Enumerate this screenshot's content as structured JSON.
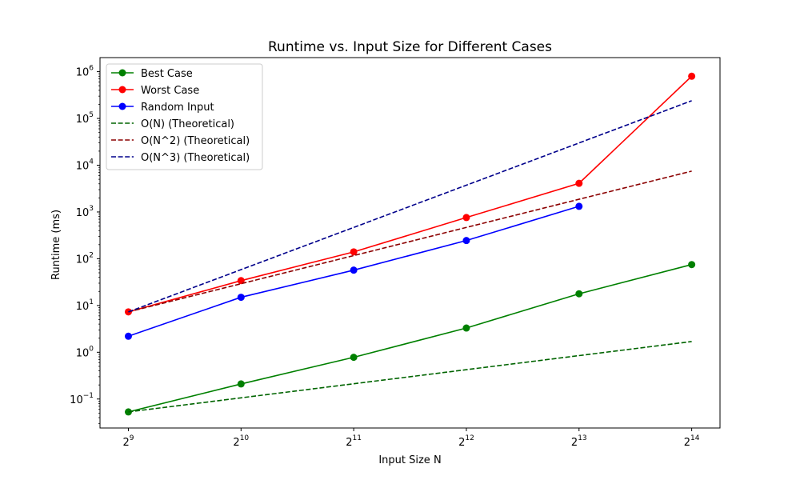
{
  "chart_data": {
    "type": "line",
    "title": "Runtime vs. Input Size for Different Cases",
    "xlabel": "Input Size N",
    "ylabel": "Runtime (ms)",
    "x_scale": "log2",
    "y_scale": "log10",
    "x": [
      512,
      1024,
      2048,
      4096,
      8192,
      16384
    ],
    "x_tick_labels": [
      {
        "base": "2",
        "exp": "9"
      },
      {
        "base": "2",
        "exp": "10"
      },
      {
        "base": "2",
        "exp": "11"
      },
      {
        "base": "2",
        "exp": "12"
      },
      {
        "base": "2",
        "exp": "13"
      },
      {
        "base": "2",
        "exp": "14"
      }
    ],
    "y_ticks": [
      0.1,
      1,
      10,
      100,
      1000,
      10000,
      100000,
      1000000
    ],
    "y_tick_labels": [
      {
        "base": "10",
        "exp": "−1"
      },
      {
        "base": "10",
        "exp": "0"
      },
      {
        "base": "10",
        "exp": "1"
      },
      {
        "base": "10",
        "exp": "2"
      },
      {
        "base": "10",
        "exp": "3"
      },
      {
        "base": "10",
        "exp": "4"
      },
      {
        "base": "10",
        "exp": "5"
      },
      {
        "base": "10",
        "exp": "6"
      }
    ],
    "xlim": [
      430,
      19500
    ],
    "ylim": [
      0.024,
      2000000
    ],
    "grid": false,
    "legend_position": "top-left",
    "series": [
      {
        "name": "Best Case",
        "color": "#008000",
        "style": "solid",
        "marker": "circle",
        "x": [
          512,
          1024,
          2048,
          4096,
          8192,
          16384
        ],
        "values": [
          0.053,
          0.21,
          0.78,
          3.3,
          17.8,
          75
        ]
      },
      {
        "name": "Worst Case",
        "color": "#ff0000",
        "style": "solid",
        "marker": "circle",
        "x": [
          512,
          1024,
          2048,
          4096,
          8192,
          16384
        ],
        "values": [
          7.3,
          34,
          140,
          760,
          4100,
          800000
        ]
      },
      {
        "name": "Random Input",
        "color": "#0000ff",
        "style": "solid",
        "marker": "circle",
        "x": [
          512,
          1024,
          2048,
          4096,
          8192
        ],
        "values": [
          2.2,
          15,
          57,
          245,
          1320
        ]
      },
      {
        "name": "O(N) (Theoretical)",
        "color": "#006400",
        "style": "dashed",
        "marker": "none",
        "x": [
          512,
          1024,
          2048,
          4096,
          8192,
          16384
        ],
        "values": [
          0.053,
          0.106,
          0.212,
          0.424,
          0.848,
          1.696
        ]
      },
      {
        "name": "O(N^2) (Theoretical)",
        "color": "#8b0000",
        "style": "dashed",
        "marker": "none",
        "x": [
          512,
          1024,
          2048,
          4096,
          8192,
          16384
        ],
        "values": [
          7.3,
          29.2,
          116.8,
          467.2,
          1868.8,
          7475.2
        ]
      },
      {
        "name": "O(N^3) (Theoretical)",
        "color": "#00008b",
        "style": "dashed",
        "marker": "none",
        "x": [
          512,
          1024,
          2048,
          4096,
          8192,
          16384
        ],
        "values": [
          7.3,
          58.4,
          467.2,
          3737.6,
          29900.8,
          239206.4
        ]
      }
    ]
  }
}
